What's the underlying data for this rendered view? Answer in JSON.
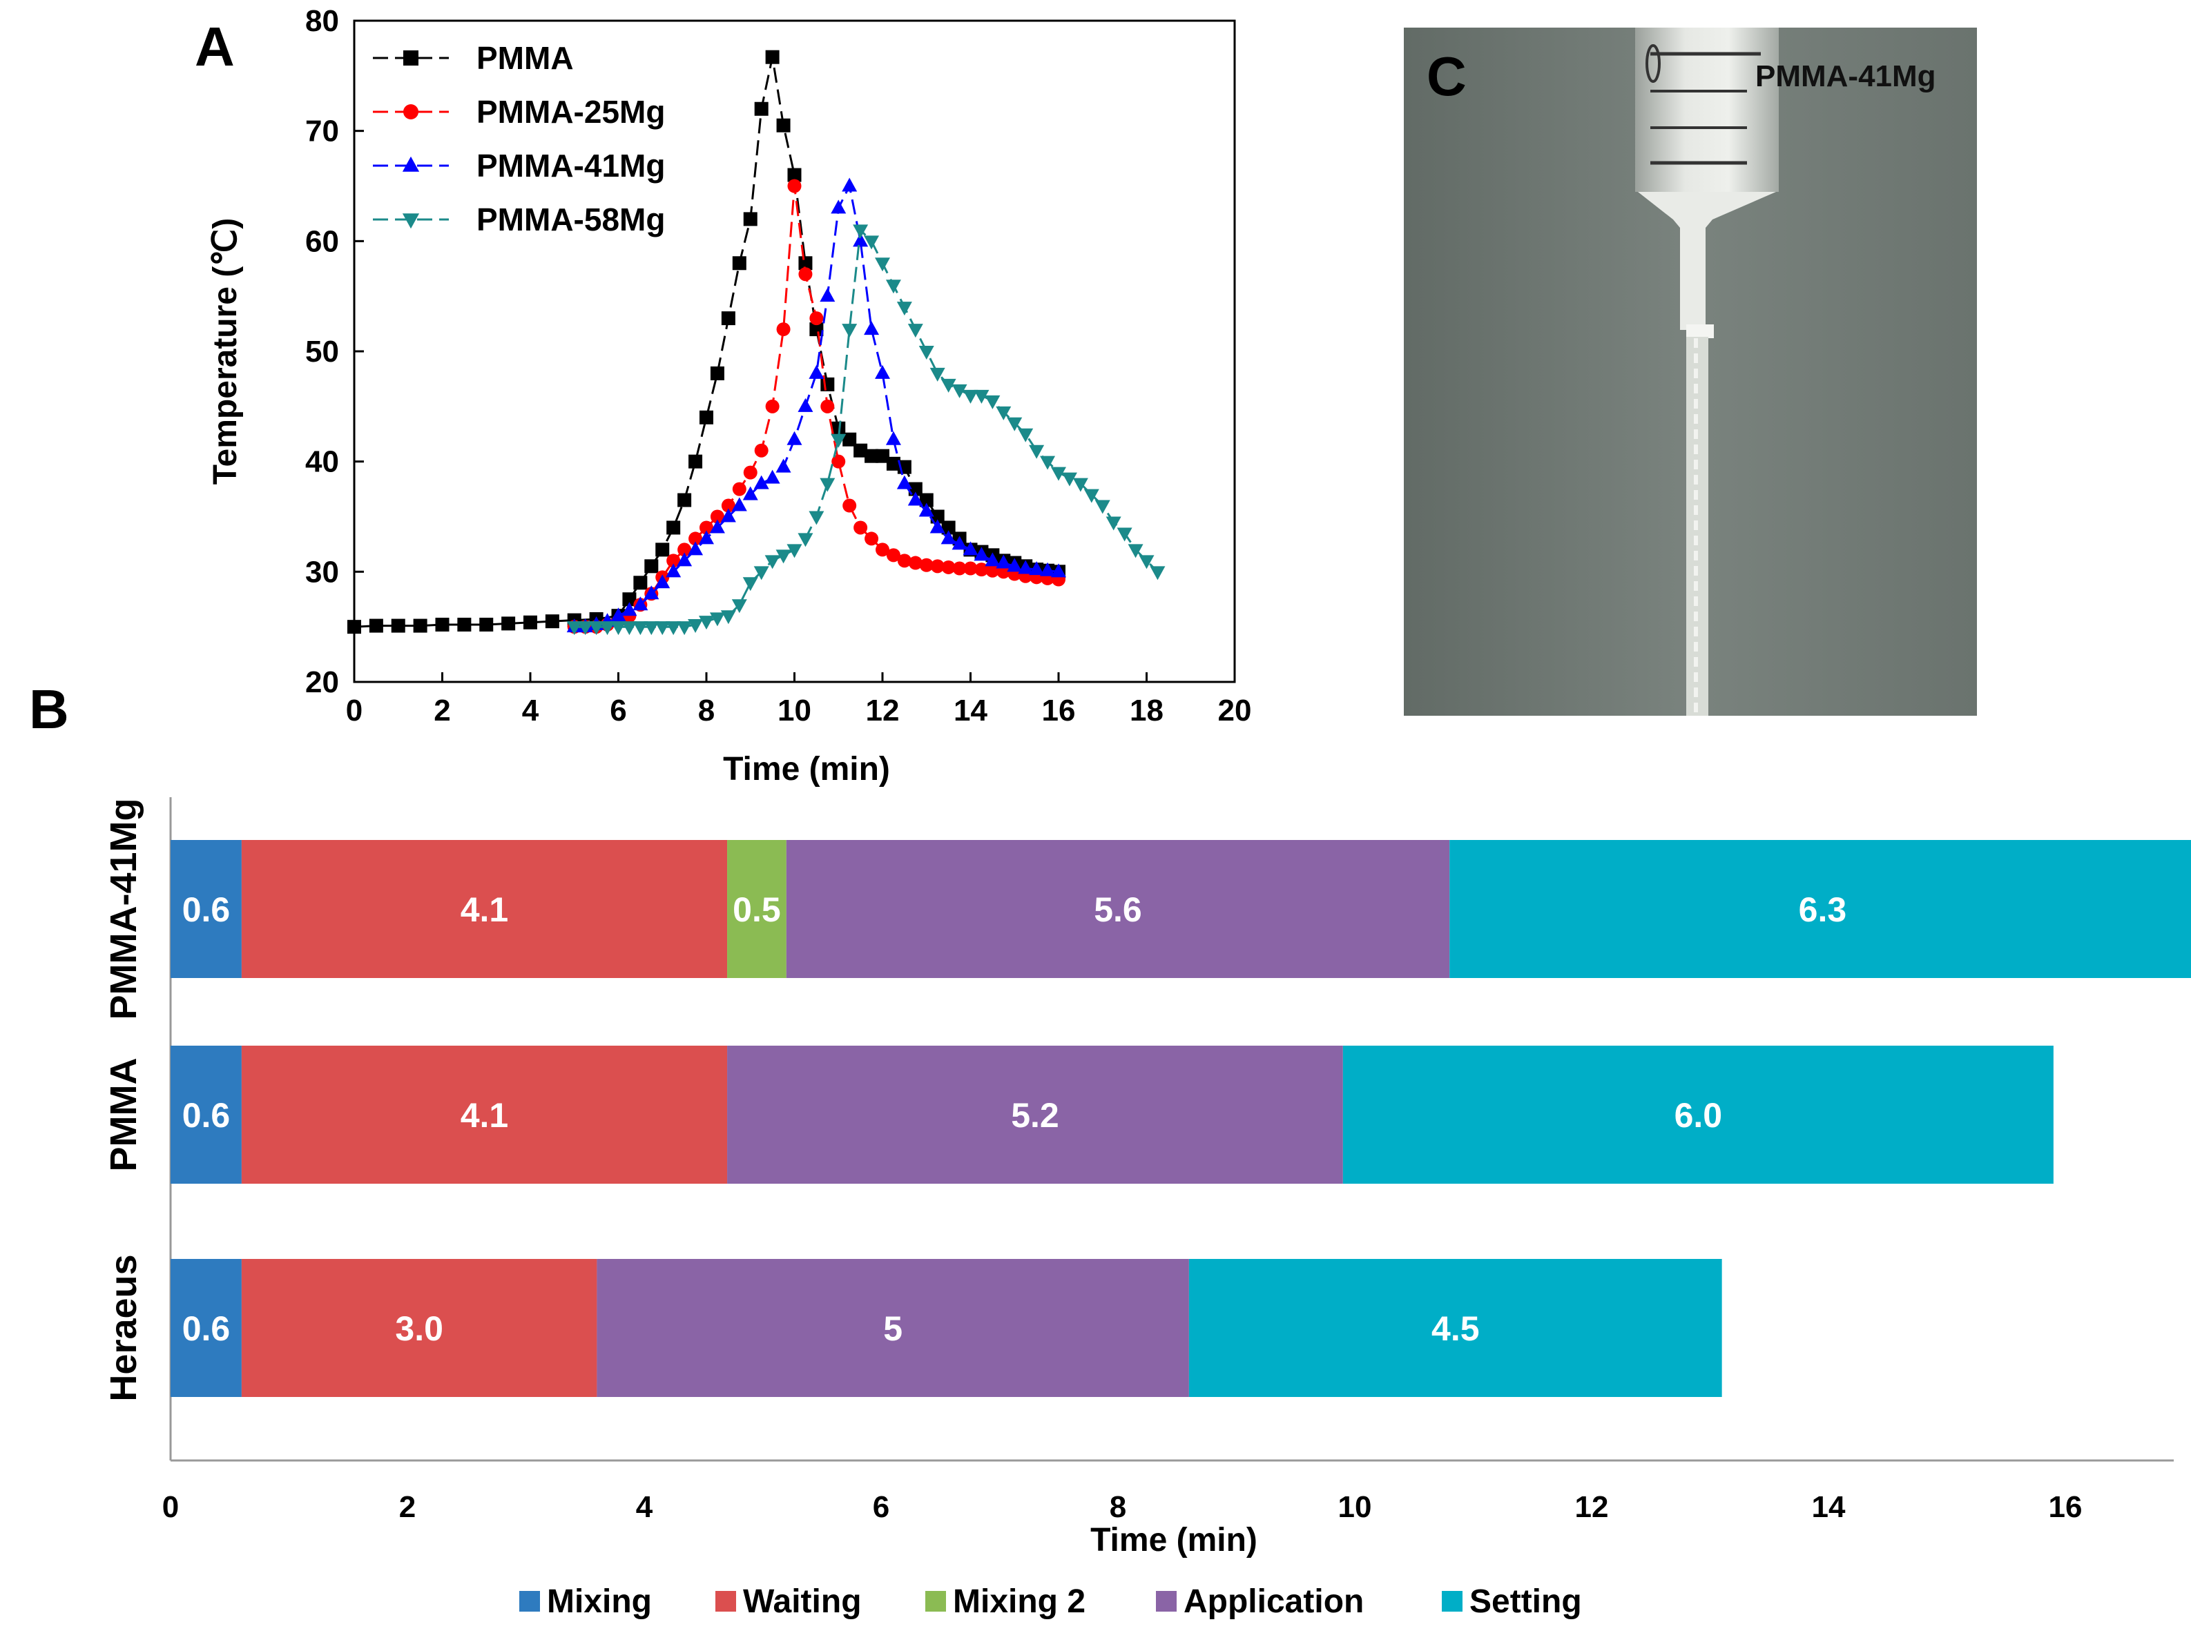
{
  "panel_a": {
    "letter": "A",
    "chart_data": {
      "type": "line",
      "title": "",
      "xlabel": "Time (min)",
      "ylabel": "Temperature (℃)",
      "xlim": [
        0,
        20
      ],
      "ylim": [
        20,
        80
      ],
      "xticks": [
        "0",
        "2",
        "4",
        "6",
        "8",
        "10",
        "12",
        "14",
        "16",
        "18",
        "20"
      ],
      "yticks": [
        "20",
        "30",
        "40",
        "50",
        "60",
        "70",
        "80"
      ],
      "grid": false,
      "legend_position": "top-left",
      "series": [
        {
          "name": "PMMA",
          "color": "#000000",
          "marker": "square",
          "x": [
            0,
            0.5,
            1,
            1.5,
            2,
            2.5,
            3,
            3.5,
            4,
            4.5,
            5,
            5.5,
            6,
            6.25,
            6.5,
            6.75,
            7,
            7.25,
            7.5,
            7.75,
            8,
            8.25,
            8.5,
            8.75,
            9,
            9.25,
            9.5,
            9.75,
            10,
            10.25,
            10.5,
            10.75,
            11,
            11.25,
            11.5,
            11.75,
            12,
            12.25,
            12.5,
            12.75,
            13,
            13.25,
            13.5,
            13.75,
            14,
            14.25,
            14.5,
            14.75,
            15,
            15.25,
            15.5,
            15.75,
            16
          ],
          "y": [
            25,
            25.1,
            25.1,
            25.1,
            25.2,
            25.2,
            25.2,
            25.3,
            25.4,
            25.5,
            25.6,
            25.7,
            26,
            27.5,
            29,
            30.5,
            32,
            34,
            36.5,
            40,
            44,
            48,
            53,
            58,
            62,
            72,
            76.7,
            70.5,
            66,
            58,
            52,
            47,
            43,
            42,
            41,
            40.5,
            40.5,
            39.8,
            39.5,
            37.5,
            36.5,
            35,
            34,
            33,
            32,
            31.8,
            31.5,
            31,
            30.8,
            30.5,
            30.2,
            30.1,
            30
          ]
        },
        {
          "name": "PMMA-25Mg",
          "color": "#ff0000",
          "marker": "circle",
          "x": [
            5,
            5.25,
            5.5,
            5.75,
            6,
            6.25,
            6.5,
            6.75,
            7,
            7.25,
            7.5,
            7.75,
            8,
            8.25,
            8.5,
            8.75,
            9,
            9.25,
            9.5,
            9.75,
            10,
            10.25,
            10.5,
            10.75,
            11,
            11.25,
            11.5,
            11.75,
            12,
            12.25,
            12.5,
            12.75,
            13,
            13.25,
            13.5,
            13.75,
            14,
            14.25,
            14.5,
            14.75,
            15,
            15.25,
            15.5,
            15.75,
            16
          ],
          "y": [
            25,
            25,
            25,
            25.2,
            25.5,
            26,
            27,
            28,
            29.5,
            31,
            32,
            33,
            34,
            35,
            36,
            37.5,
            39,
            41,
            45,
            52,
            65,
            57,
            53,
            45,
            40,
            36,
            34,
            33,
            32,
            31.5,
            31,
            30.8,
            30.6,
            30.5,
            30.4,
            30.3,
            30.3,
            30.2,
            30.1,
            30,
            29.8,
            29.6,
            29.5,
            29.4,
            29.3
          ]
        },
        {
          "name": "PMMA-41Mg",
          "color": "#0000ff",
          "marker": "triangle-up",
          "x": [
            5,
            5.25,
            5.5,
            5.75,
            6,
            6.25,
            6.5,
            6.75,
            7,
            7.25,
            7.5,
            7.75,
            8,
            8.25,
            8.5,
            8.75,
            9,
            9.25,
            9.5,
            9.75,
            10,
            10.25,
            10.5,
            10.75,
            11,
            11.25,
            11.5,
            11.75,
            12,
            12.25,
            12.5,
            12.75,
            13,
            13.25,
            13.5,
            13.75,
            14,
            14.25,
            14.5,
            14.75,
            15,
            15.25,
            15.5,
            15.75,
            16
          ],
          "y": [
            25,
            25,
            25.2,
            25.5,
            26,
            26.5,
            27,
            28,
            29,
            30,
            31,
            32,
            33,
            34,
            35,
            36,
            37,
            38,
            38.5,
            39.5,
            42,
            45,
            48,
            55,
            63,
            65,
            60,
            52,
            48,
            42,
            38,
            36.5,
            35.5,
            34,
            33,
            32.5,
            32,
            31.5,
            31,
            30.8,
            30.5,
            30.3,
            30.2,
            30.1,
            30
          ]
        },
        {
          "name": "PMMA-58Mg",
          "color": "#1b8a8a",
          "marker": "triangle-down",
          "x": [
            5,
            5.25,
            5.5,
            5.75,
            6,
            6.25,
            6.5,
            6.75,
            7,
            7.25,
            7.5,
            7.75,
            8,
            8.25,
            8.5,
            8.75,
            9,
            9.25,
            9.5,
            9.75,
            10,
            10.25,
            10.5,
            10.75,
            11,
            11.25,
            11.5,
            11.75,
            12,
            12.25,
            12.5,
            12.75,
            13,
            13.25,
            13.5,
            13.75,
            14,
            14.25,
            14.5,
            14.75,
            15,
            15.25,
            15.5,
            15.75,
            16,
            16.25,
            16.5,
            16.75,
            17,
            17.25,
            17.5,
            17.75,
            18,
            18.25
          ],
          "y": [
            25,
            25,
            25,
            25,
            25,
            25,
            25,
            25,
            25,
            25,
            25,
            25.2,
            25.5,
            25.8,
            26,
            27,
            29,
            30,
            31,
            31.5,
            32,
            33,
            35,
            38,
            42,
            52,
            61,
            60,
            58,
            56,
            54,
            52,
            50,
            48,
            47,
            46.5,
            46,
            46,
            45.5,
            44.5,
            43.5,
            42.5,
            41,
            40,
            39,
            38.5,
            38,
            37,
            36,
            34.5,
            33.5,
            32,
            31,
            30
          ]
        }
      ]
    }
  },
  "panel_b": {
    "letter": "B",
    "chart_data": {
      "type": "bar",
      "orientation": "horizontal",
      "stacked": true,
      "title": "",
      "xlabel": "Time (min)",
      "ylabel": "",
      "xlim": [
        0,
        17
      ],
      "xticks": [
        "0",
        "2",
        "4",
        "6",
        "8",
        "10",
        "12",
        "14",
        "16"
      ],
      "grid": false,
      "legend_position": "bottom",
      "categories": [
        "PMMA-41Mg",
        "PMMA",
        "Heraeus"
      ],
      "series": [
        {
          "name": "Mixing",
          "color": "#2e7bbf",
          "values": [
            0.6,
            0.6,
            0.6
          ],
          "labels": [
            "0.6",
            "0.6",
            "0.6"
          ]
        },
        {
          "name": "Waiting",
          "color": "#db4f4f",
          "values": [
            4.1,
            4.1,
            3.0
          ],
          "labels": [
            "4.1",
            "4.1",
            "3.0"
          ]
        },
        {
          "name": "Mixing 2",
          "color": "#8bbb53",
          "values": [
            0.5,
            0,
            0
          ],
          "labels": [
            "0.5",
            "",
            ""
          ]
        },
        {
          "name": "Application",
          "color": "#8a64a6",
          "values": [
            5.6,
            5.2,
            5
          ],
          "labels": [
            "5.6",
            "5.2",
            "5"
          ]
        },
        {
          "name": "Setting",
          "color": "#00aec7",
          "values": [
            6.3,
            6.0,
            4.5
          ],
          "labels": [
            "6.3",
            "6.0",
            "4.5"
          ]
        }
      ]
    }
  },
  "panel_c": {
    "letter": "C",
    "label": "PMMA-41Mg",
    "background_color": "#6e7772"
  }
}
